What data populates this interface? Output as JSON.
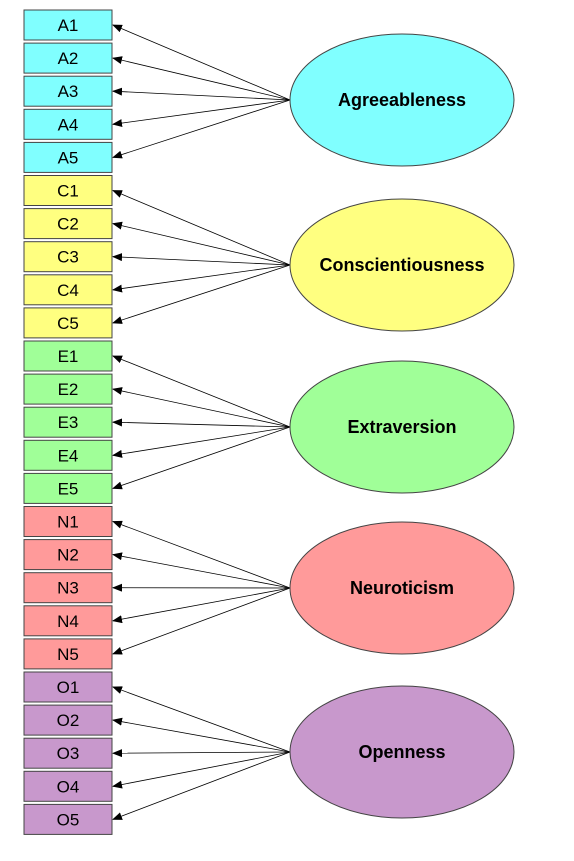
{
  "factors": [
    {
      "label": "Agreeableness",
      "color": "#80ffff",
      "items": [
        "A1",
        "A2",
        "A3",
        "A4",
        "A5"
      ]
    },
    {
      "label": "Conscientiousness",
      "color": "#ffff80",
      "items": [
        "C1",
        "C2",
        "C3",
        "C4",
        "C5"
      ]
    },
    {
      "label": "Extraversion",
      "color": "#a0ff98",
      "items": [
        "E1",
        "E2",
        "E3",
        "E4",
        "E5"
      ]
    },
    {
      "label": "Neuroticism",
      "color": "#ff9a9a",
      "items": [
        "N1",
        "N2",
        "N3",
        "N4",
        "N5"
      ]
    },
    {
      "label": "Openness",
      "color": "#c898cc",
      "items": [
        "O1",
        "O2",
        "O3",
        "O4",
        "O5"
      ]
    }
  ]
}
